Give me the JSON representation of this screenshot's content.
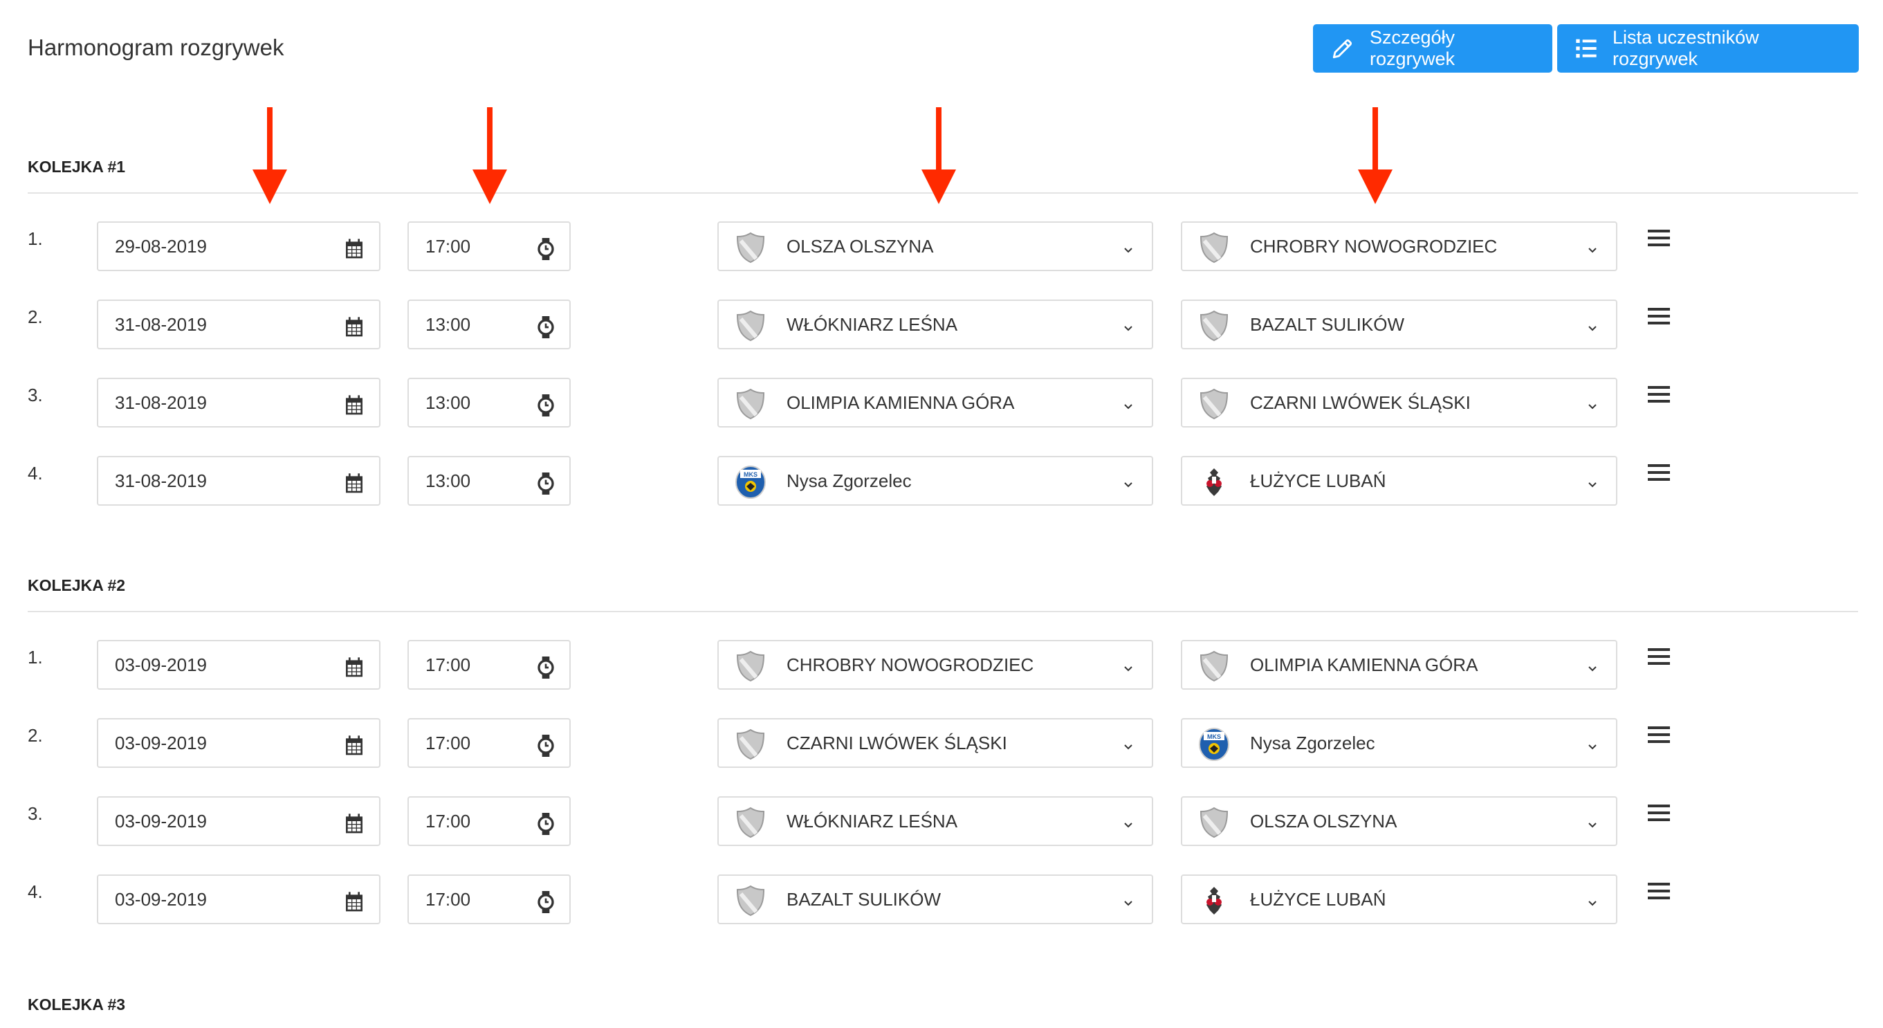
{
  "header": {
    "title": "Harmonogram rozgrywek",
    "buttons": [
      {
        "label": "Szczegóły rozgrywek",
        "icon": "pencil-icon"
      },
      {
        "label": "Lista uczestników rozgrywek",
        "icon": "list-icon"
      }
    ]
  },
  "colors": {
    "accent": "#2196f3",
    "annotation_arrow": "#ff2a00"
  },
  "rounds": [
    {
      "label": "KOLEJKA #1",
      "matches": [
        {
          "num": "1.",
          "date": "29-08-2019",
          "time": "17:00",
          "home": {
            "name": "OLSZA OLSZYNA",
            "logo": "shield"
          },
          "away": {
            "name": "CHROBRY NOWOGRODZIEC",
            "logo": "shield"
          }
        },
        {
          "num": "2.",
          "date": "31-08-2019",
          "time": "13:00",
          "home": {
            "name": "WŁÓKNIARZ LEŚNA",
            "logo": "shield"
          },
          "away": {
            "name": "BAZALT SULIKÓW",
            "logo": "shield"
          }
        },
        {
          "num": "3.",
          "date": "31-08-2019",
          "time": "13:00",
          "home": {
            "name": "OLIMPIA KAMIENNA GÓRA",
            "logo": "shield"
          },
          "away": {
            "name": "CZARNI LWÓWEK ŚLĄSKI",
            "logo": "shield"
          }
        },
        {
          "num": "4.",
          "date": "31-08-2019",
          "time": "13:00",
          "home": {
            "name": "Nysa Zgorzelec",
            "logo": "nysa"
          },
          "away": {
            "name": "ŁUŻYCE LUBAŃ",
            "logo": "luzyce"
          }
        }
      ]
    },
    {
      "label": "KOLEJKA #2",
      "matches": [
        {
          "num": "1.",
          "date": "03-09-2019",
          "time": "17:00",
          "home": {
            "name": "CHROBRY NOWOGRODZIEC",
            "logo": "shield"
          },
          "away": {
            "name": "OLIMPIA KAMIENNA GÓRA",
            "logo": "shield"
          }
        },
        {
          "num": "2.",
          "date": "03-09-2019",
          "time": "17:00",
          "home": {
            "name": "CZARNI LWÓWEK ŚLĄSKI",
            "logo": "shield"
          },
          "away": {
            "name": "Nysa Zgorzelec",
            "logo": "nysa"
          }
        },
        {
          "num": "3.",
          "date": "03-09-2019",
          "time": "17:00",
          "home": {
            "name": "WŁÓKNIARZ LEŚNA",
            "logo": "shield"
          },
          "away": {
            "name": "OLSZA OLSZYNA",
            "logo": "shield"
          }
        },
        {
          "num": "4.",
          "date": "03-09-2019",
          "time": "17:00",
          "home": {
            "name": "BAZALT SULIKÓW",
            "logo": "shield"
          },
          "away": {
            "name": "ŁUŻYCE LUBAŃ",
            "logo": "luzyce"
          }
        }
      ]
    },
    {
      "label": "KOLEJKA #3",
      "matches": []
    }
  ]
}
